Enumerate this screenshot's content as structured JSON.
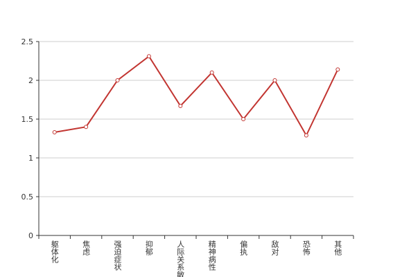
{
  "chart_data": {
    "type": "line",
    "categories": [
      "躯体化",
      "焦虑",
      "强迫症状",
      "抑郁",
      "人际关系敏感",
      "精神病性",
      "偏执",
      "敌对",
      "恐怖",
      "其他"
    ],
    "values": [
      1.33,
      1.4,
      2.0,
      2.31,
      1.67,
      2.1,
      1.5,
      2.0,
      1.29,
      2.14
    ],
    "color": "#c23531",
    "ylim": [
      0,
      2.5
    ],
    "yticks": [
      0,
      0.5,
      1,
      1.5,
      2,
      2.5
    ],
    "grid": true
  }
}
